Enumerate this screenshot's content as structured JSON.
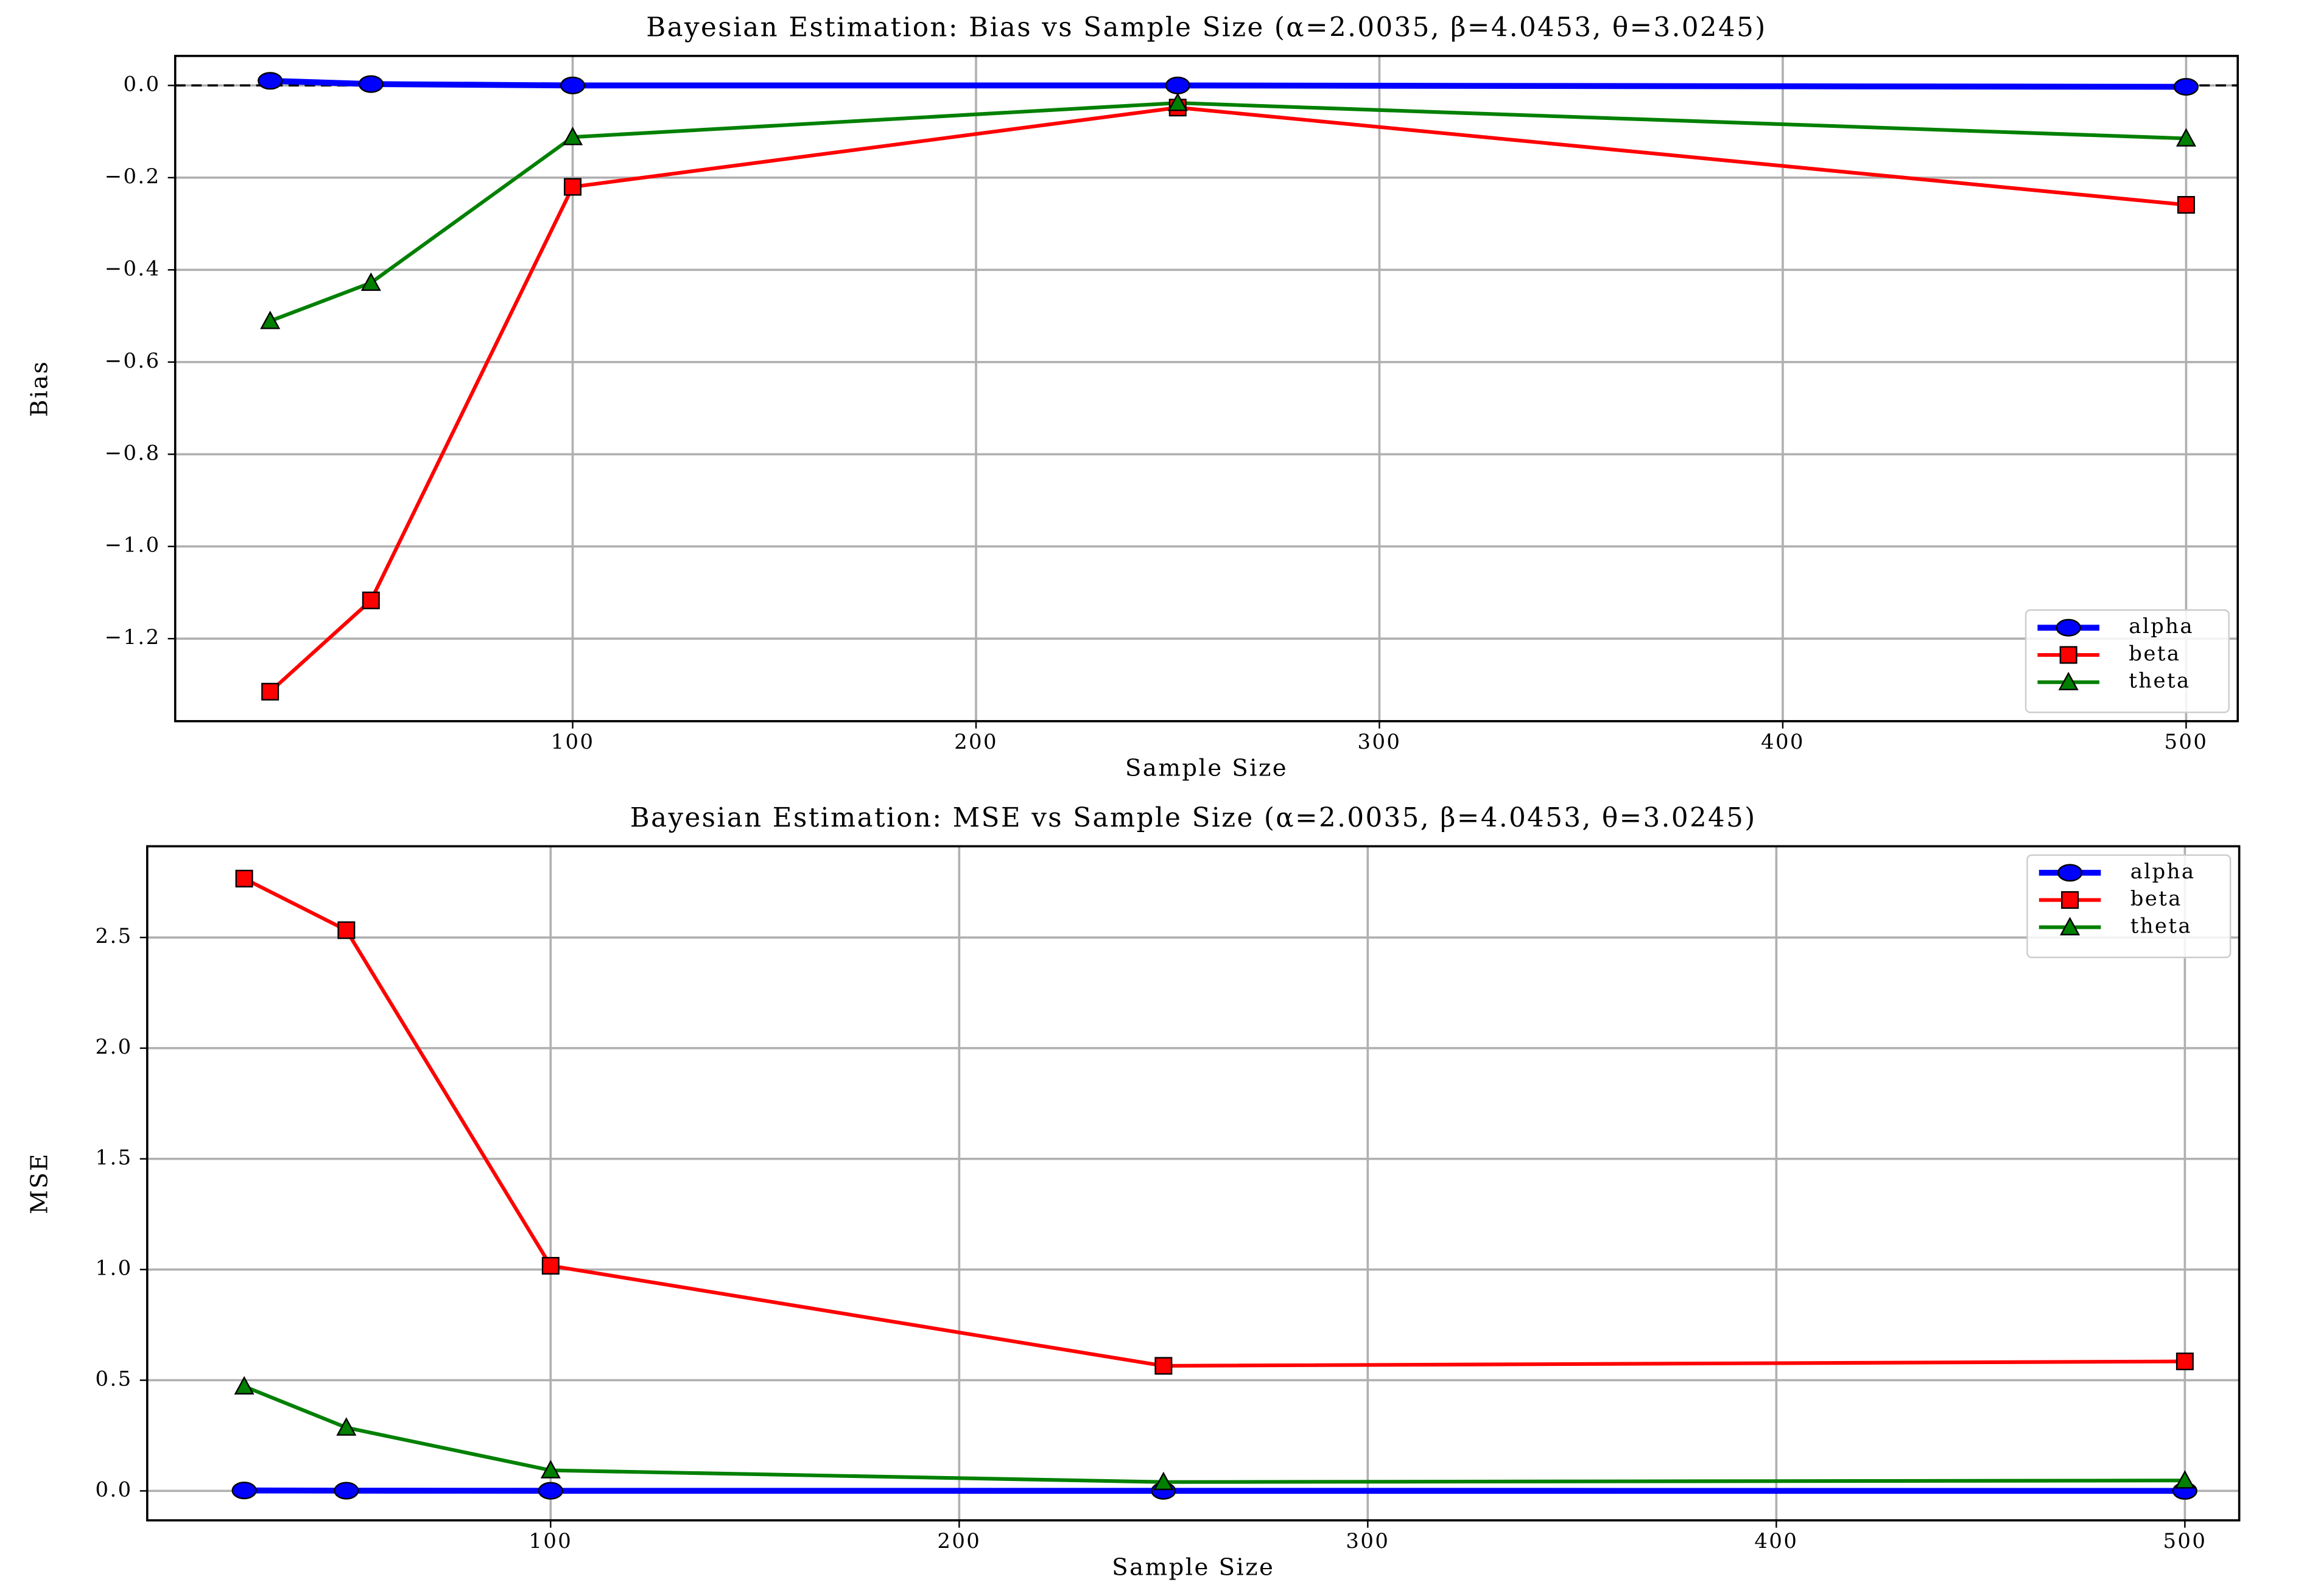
{
  "chart_data": [
    {
      "type": "line",
      "title": "Bayesian Estimation: Bias vs Sample Size (α=2.0035, β=4.0453, θ=3.0245)",
      "xlabel": "Sample Size",
      "ylabel": "Bias",
      "x": [
        25,
        50,
        100,
        250,
        500
      ],
      "series": [
        {
          "name": "alpha",
          "color": "#0000ff",
          "marker": "circle",
          "values": [
            0.01,
            0.003,
            0.0,
            0.0,
            -0.003
          ]
        },
        {
          "name": "beta",
          "color": "#ff0000",
          "marker": "square",
          "values": [
            -1.315,
            -1.117,
            -0.22,
            -0.048,
            -0.259
          ]
        },
        {
          "name": "theta",
          "color": "#008000",
          "marker": "triangle",
          "values": [
            -0.511,
            -0.428,
            -0.112,
            -0.038,
            -0.115
          ]
        }
      ],
      "xlim": [
        1.46,
        512.8
      ],
      "ylim": [
        -1.379,
        0.064
      ],
      "xticks": [
        100,
        200,
        300,
        400,
        500
      ],
      "yticks": [
        {
          "value": -1.2,
          "label": "−1.2"
        },
        {
          "value": -1.0,
          "label": "−1.0"
        },
        {
          "value": -0.8,
          "label": "−0.8"
        },
        {
          "value": -0.6,
          "label": "−0.6"
        },
        {
          "value": -0.4,
          "label": "−0.4"
        },
        {
          "value": -0.2,
          "label": "−0.2"
        },
        {
          "value": 0,
          "label": "0.0"
        }
      ],
      "grid": true,
      "legend": "lower right",
      "hline": 0
    },
    {
      "type": "line",
      "title": "Bayesian Estimation: MSE vs Sample Size (α=2.0035, β=4.0453, θ=3.0245)",
      "xlabel": "Sample Size",
      "ylabel": "MSE",
      "x": [
        25,
        50,
        100,
        250,
        500
      ],
      "series": [
        {
          "name": "alpha",
          "color": "#0000ff",
          "marker": "circle",
          "values": [
            0.002,
            0.001,
            0.0005,
            0.0002,
            0.0001
          ]
        },
        {
          "name": "beta",
          "color": "#ff0000",
          "marker": "square",
          "values": [
            2.766,
            2.533,
            1.017,
            0.565,
            0.585
          ]
        },
        {
          "name": "theta",
          "color": "#008000",
          "marker": "triangle",
          "values": [
            0.472,
            0.286,
            0.093,
            0.04,
            0.047
          ]
        }
      ],
      "xlim": [
        1.26,
        513.3
      ],
      "ylim": [
        -0.133,
        2.912
      ],
      "xticks": [
        100,
        200,
        300,
        400,
        500
      ],
      "yticks": [
        {
          "value": 0,
          "label": "0.0"
        },
        {
          "value": 0.5,
          "label": "0.5"
        },
        {
          "value": 1.0,
          "label": "1.0"
        },
        {
          "value": 1.5,
          "label": "1.5"
        },
        {
          "value": 2.0,
          "label": "2.0"
        },
        {
          "value": 2.5,
          "label": "2.5"
        }
      ],
      "grid": true,
      "legend": "upper right"
    }
  ]
}
